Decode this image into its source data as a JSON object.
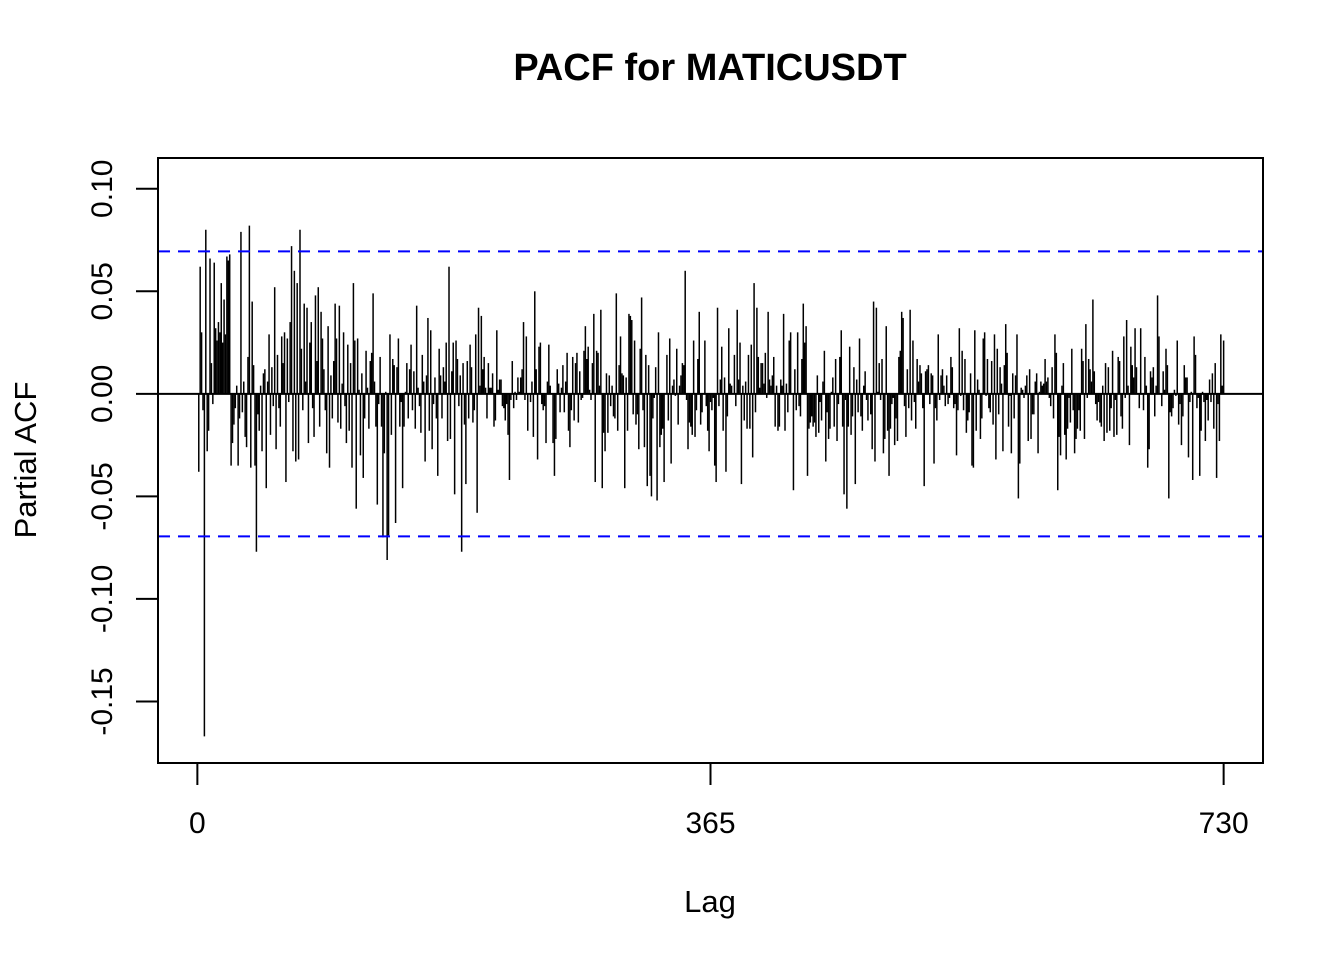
{
  "chart_data": {
    "type": "bar",
    "title": "PACF for MATICUSDT",
    "xlabel": "Lag",
    "ylabel": "Partial ACF",
    "xlim": [
      -28,
      758
    ],
    "ylim": [
      -0.18,
      0.115
    ],
    "x_ticks": [
      0,
      365,
      730
    ],
    "x_tick_labels": [
      "0",
      "365",
      "730"
    ],
    "y_ticks": [
      -0.15,
      -0.1,
      -0.05,
      0.0,
      0.05,
      0.1
    ],
    "y_tick_labels": [
      "-0.15",
      "-0.10",
      "-0.05",
      "0.00",
      "0.05",
      "0.10"
    ],
    "confidence_bound": 0.0695,
    "colors": {
      "bars": "#000000",
      "bounds": "#0000ff",
      "zero_line": "#000000",
      "frame": "#000000"
    },
    "legend": "none",
    "grid": false,
    "series": [
      {
        "lags": "1-730",
        "values": [
          -0.038,
          0.062,
          0.03,
          -0.008,
          -0.167,
          0.08,
          -0.028,
          -0.018,
          0.066,
          0.015,
          -0.005,
          0.064,
          0.032,
          0.026,
          0.035,
          0.03,
          0.054,
          0.025,
          0.046,
          0.029,
          0.067,
          0.065,
          0.068,
          -0.035,
          -0.024,
          -0.015,
          -0.007,
          0.004,
          -0.035,
          -0.012,
          0.079,
          -0.009,
          0.006,
          -0.021,
          -0.026,
          0.018,
          0.082,
          -0.036,
          0.045,
          0.014,
          -0.035,
          -0.077,
          -0.01,
          -0.018,
          0.004,
          -0.028,
          0.01,
          0.012,
          -0.046,
          0.006,
          0.029,
          -0.02,
          0.013,
          -0.006,
          0.052,
          -0.027,
          0.019,
          -0.007,
          -0.016,
          0.028,
          0.015,
          0.03,
          -0.043,
          0.027,
          -0.004,
          0.035,
          0.072,
          -0.028,
          0.06,
          -0.033,
          0.054,
          -0.032,
          0.08,
          0.022,
          -0.008,
          0.044,
          0.006,
          0.042,
          -0.024,
          0.025,
          0.035,
          -0.007,
          -0.021,
          0.048,
          0.016,
          0.052,
          -0.016,
          0.04,
          0.027,
          0.012,
          -0.008,
          -0.029,
          0.033,
          -0.036,
          0.009,
          -0.012,
          0.016,
          0.044,
          0.027,
          -0.014,
          0.043,
          -0.017,
          0.005,
          0.03,
          -0.006,
          -0.024,
          0.024,
          -0.018,
          0.015,
          -0.036,
          0.054,
          0.026,
          -0.056,
          0.027,
          0.002,
          -0.03,
          0.01,
          -0.041,
          -0.012,
          0.021,
          0.003,
          -0.017,
          0.016,
          0.02,
          0.049,
          0.006,
          -0.016,
          -0.054,
          -0.005,
          0.018,
          -0.016,
          -0.07,
          -0.029,
          0.001,
          -0.081,
          -0.069,
          0.029,
          -0.02,
          0.017,
          0.014,
          -0.063,
          0.013,
          0.027,
          -0.016,
          -0.004,
          -0.046,
          -0.016,
          0.001,
          0.015,
          -0.012,
          0.012,
          0.024,
          -0.008,
          0.011,
          -0.017,
          0.043,
          0.003,
          -0.006,
          -0.019,
          0.019,
          0.006,
          -0.033,
          0.009,
          0.037,
          -0.018,
          0.031,
          -0.027,
          -0.005,
          0.008,
          -0.012,
          -0.04,
          0.022,
          0.009,
          -0.012,
          0.013,
          0.006,
          0.025,
          -0.023,
          0.062,
          -0.022,
          0.011,
          0.025,
          -0.049,
          0.026,
          0.017,
          -0.006,
          0.009,
          -0.077,
          0.015,
          -0.015,
          -0.044,
          0.016,
          -0.012,
          0.024,
          0.013,
          -0.014,
          -0.008,
          0.029,
          -0.058,
          0.042
        ],
        "note_hidden": ""
      }
    ]
  }
}
